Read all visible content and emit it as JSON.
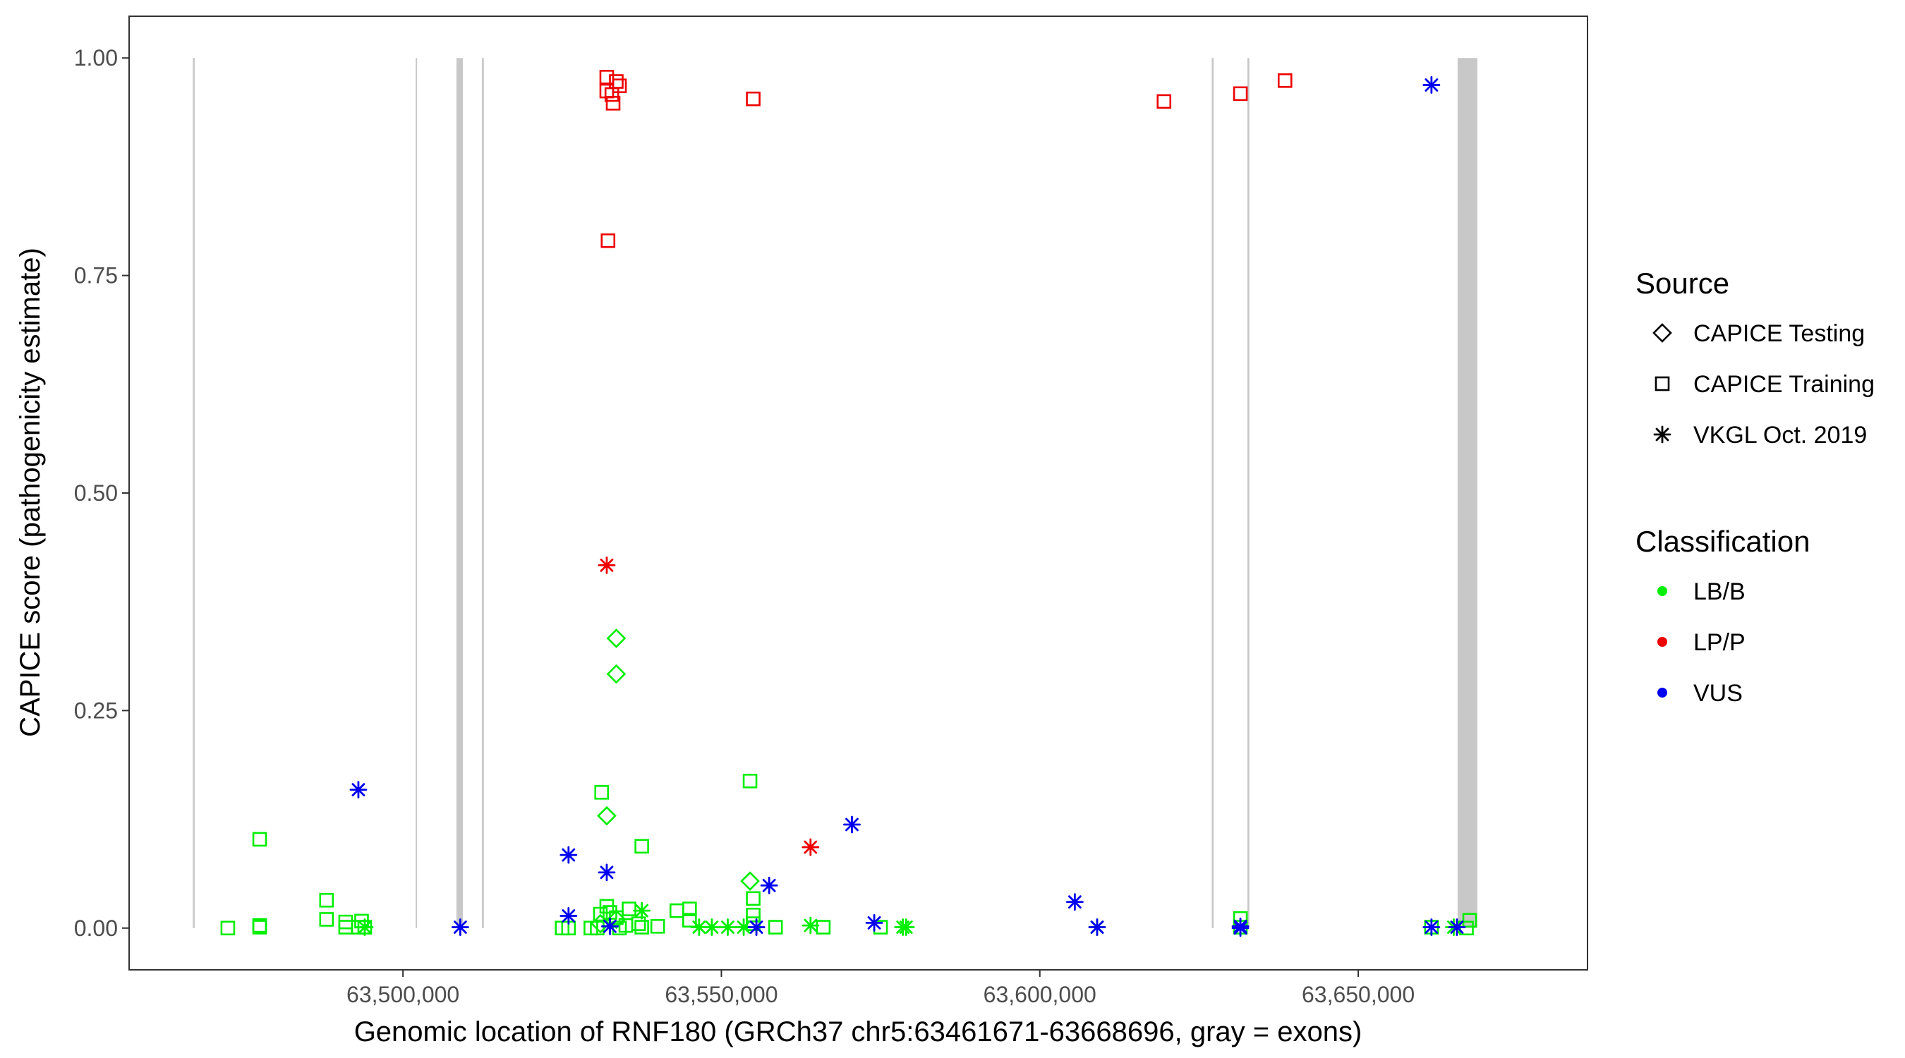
{
  "chart_data": {
    "type": "scatter",
    "title": "",
    "xlabel": "Genomic location of RNF180 (GRCh37 chr5:63461671-63668696, gray = exons)",
    "ylabel": "CAPICE score (pathogenicity estimate)",
    "xlim": [
      63457000,
      63686000
    ],
    "ylim": [
      -0.048,
      1.048
    ],
    "x_ticks": [
      63500000,
      63550000,
      63600000,
      63650000
    ],
    "x_tick_labels": [
      "63,500,000",
      "63,550,000",
      "63,600,000",
      "63,650,000"
    ],
    "y_ticks": [
      0,
      0.25,
      0.5,
      0.75,
      1.0
    ],
    "y_tick_labels": [
      "0.00",
      "0.25",
      "0.50",
      "0.75",
      "1.00"
    ],
    "grid": false,
    "exons": [
      {
        "start": 63467000,
        "end": 63467300
      },
      {
        "start": 63502000,
        "end": 63502200
      },
      {
        "start": 63508400,
        "end": 63509400
      },
      {
        "start": 63512400,
        "end": 63512700
      },
      {
        "start": 63627000,
        "end": 63627300
      },
      {
        "start": 63632600,
        "end": 63632900
      },
      {
        "start": 63665600,
        "end": 63668700
      }
    ],
    "legends": [
      {
        "title": "Source",
        "entries": [
          {
            "label": "CAPICE Testing",
            "shape": "diamond"
          },
          {
            "label": "CAPICE Training",
            "shape": "square"
          },
          {
            "label": "VKGL Oct. 2019",
            "shape": "asterisk"
          }
        ]
      },
      {
        "title": "Classification",
        "entries": [
          {
            "label": "LB/B",
            "color": "#00ee00"
          },
          {
            "label": "LP/P",
            "color": "#ee0000"
          },
          {
            "label": "VUS",
            "color": "#0000ee"
          }
        ]
      }
    ],
    "series": [
      {
        "name": "LB/B - CAPICE Testing",
        "shape": "diamond",
        "class": "LB/B",
        "points": [
          [
            63533500,
            0.333
          ],
          [
            63533500,
            0.292
          ],
          [
            63532000,
            0.129
          ],
          [
            63554500,
            0.054
          ],
          [
            63533500,
            0.01
          ],
          [
            63531000,
            0.005
          ]
        ]
      },
      {
        "name": "LP/P - CAPICE Training",
        "shape": "square",
        "class": "LP/P",
        "points": [
          [
            63532000,
            0.978
          ],
          [
            63532000,
            0.962
          ],
          [
            63532800,
            0.958
          ],
          [
            63533000,
            0.948
          ],
          [
            63533500,
            0.973
          ],
          [
            63534000,
            0.968
          ],
          [
            63532200,
            0.79
          ],
          [
            63555000,
            0.953
          ],
          [
            63619500,
            0.95
          ],
          [
            63631500,
            0.959
          ],
          [
            63638500,
            0.974
          ]
        ]
      },
      {
        "name": "LB/B - CAPICE Training",
        "shape": "square",
        "class": "LB/B",
        "points": [
          [
            63472500,
            0.0
          ],
          [
            63477500,
            0.102
          ],
          [
            63477500,
            0.003
          ],
          [
            63477500,
            0.001
          ],
          [
            63488000,
            0.032
          ],
          [
            63488000,
            0.01
          ],
          [
            63491000,
            0.007
          ],
          [
            63491000,
            0.001
          ],
          [
            63493000,
            0.001
          ],
          [
            63493500,
            0.008
          ],
          [
            63494000,
            0.001
          ],
          [
            63525000,
            0.0
          ],
          [
            63526000,
            0.0
          ],
          [
            63529500,
            0.0
          ],
          [
            63530500,
            0.0
          ],
          [
            63531000,
            0.016
          ],
          [
            63531200,
            0.156
          ],
          [
            63532000,
            0.025
          ],
          [
            63532500,
            0.018
          ],
          [
            63533500,
            0.012
          ],
          [
            63534000,
            0.0
          ],
          [
            63535000,
            0.003
          ],
          [
            63535500,
            0.022
          ],
          [
            63537000,
            0.005
          ],
          [
            63537500,
            0.094
          ],
          [
            63537500,
            0.001
          ],
          [
            63540000,
            0.002
          ],
          [
            63543000,
            0.02
          ],
          [
            63545000,
            0.022
          ],
          [
            63545000,
            0.009
          ],
          [
            63554500,
            0.169
          ],
          [
            63555000,
            0.034
          ],
          [
            63555000,
            0.015
          ],
          [
            63555000,
            0.005
          ],
          [
            63558500,
            0.001
          ],
          [
            63566000,
            0.001
          ],
          [
            63575000,
            0.001
          ],
          [
            63631500,
            0.011
          ],
          [
            63631500,
            0.001
          ],
          [
            63661500,
            0.001
          ],
          [
            63667000,
            0.0
          ],
          [
            63667500,
            0.009
          ]
        ]
      },
      {
        "name": "LB/B - VKGL Oct. 2019",
        "shape": "asterisk",
        "class": "LB/B",
        "points": [
          [
            63494000,
            0.001
          ],
          [
            63537500,
            0.02
          ],
          [
            63546500,
            0.001
          ],
          [
            63548500,
            0.001
          ],
          [
            63551000,
            0.001
          ],
          [
            63553500,
            0.001
          ],
          [
            63564000,
            0.003
          ],
          [
            63578500,
            0.001
          ],
          [
            63579000,
            0.001
          ],
          [
            63609000,
            0.001
          ],
          [
            63665000,
            0.001
          ]
        ]
      },
      {
        "name": "LP/P - VKGL Oct. 2019",
        "shape": "asterisk",
        "class": "LP/P",
        "points": [
          [
            63532000,
            0.417
          ],
          [
            63564000,
            0.093
          ]
        ]
      },
      {
        "name": "VUS - VKGL Oct. 2019",
        "shape": "asterisk",
        "class": "VUS",
        "points": [
          [
            63493000,
            0.159
          ],
          [
            63509000,
            0.001
          ],
          [
            63526000,
            0.084
          ],
          [
            63526000,
            0.014
          ],
          [
            63532000,
            0.064
          ],
          [
            63532500,
            0.002
          ],
          [
            63555500,
            0.001
          ],
          [
            63557500,
            0.049
          ],
          [
            63570500,
            0.119
          ],
          [
            63574000,
            0.006
          ],
          [
            63605500,
            0.03
          ],
          [
            63609000,
            0.001
          ],
          [
            63631500,
            0.002
          ],
          [
            63631500,
            0.0
          ],
          [
            63661500,
            0.969
          ],
          [
            63661500,
            0.001
          ],
          [
            63665500,
            0.001
          ]
        ]
      }
    ]
  },
  "colors": {
    "LB/B": "#00ee00",
    "LP/P": "#ee0000",
    "VUS": "#0000ee",
    "exon": "#c8c8c8",
    "axis": "#333333",
    "tick_text": "#4d4d4d"
  }
}
